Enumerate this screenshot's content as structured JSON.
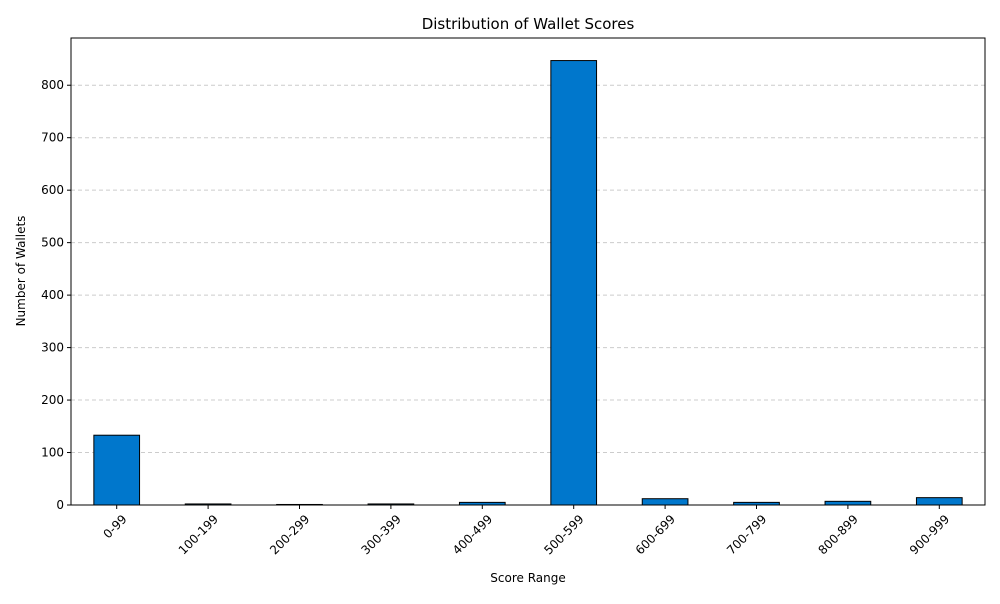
{
  "chart_data": {
    "type": "bar",
    "title": "Distribution of Wallet Scores",
    "xlabel": "Score Range",
    "ylabel": "Number of Wallets",
    "categories": [
      "0-99",
      "100-199",
      "200-299",
      "300-399",
      "400-499",
      "500-599",
      "600-699",
      "700-799",
      "800-899",
      "900-999"
    ],
    "values": [
      133,
      2,
      1,
      2,
      5,
      847,
      12,
      5,
      7,
      14
    ],
    "ylim": [
      0,
      890
    ],
    "yticks": [
      0,
      100,
      200,
      300,
      400,
      500,
      600,
      700,
      800
    ],
    "grid": "y-dashed",
    "bar_color": "#0077cc",
    "edge_color": "#000000"
  }
}
